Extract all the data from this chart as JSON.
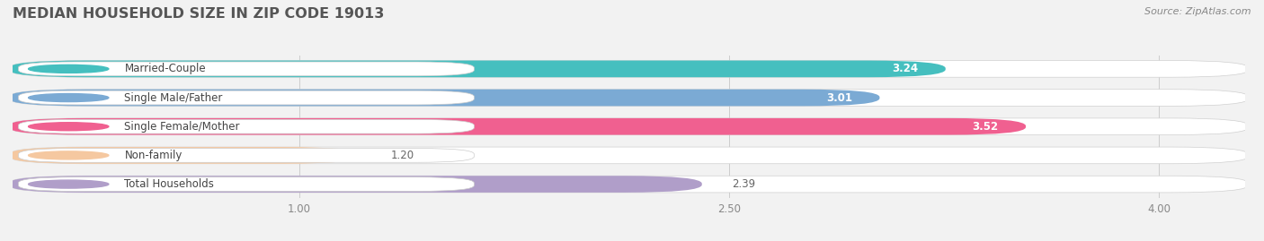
{
  "title": "MEDIAN HOUSEHOLD SIZE IN ZIP CODE 19013",
  "source": "Source: ZipAtlas.com",
  "categories": [
    "Married-Couple",
    "Single Male/Father",
    "Single Female/Mother",
    "Non-family",
    "Total Households"
  ],
  "values": [
    3.24,
    3.01,
    3.52,
    1.2,
    2.39
  ],
  "bar_colors": [
    "#45bfbf",
    "#7baad4",
    "#f06090",
    "#f5c8a0",
    "#b09ec9"
  ],
  "value_inside": [
    true,
    true,
    true,
    false,
    false
  ],
  "xmin": 0.0,
  "xmax": 4.3,
  "xlim_display": [
    1.0,
    2.5,
    4.0
  ],
  "bg_color": "#f2f2f2",
  "bar_bg_color": "#e8e8ea",
  "title_fontsize": 11.5,
  "label_fontsize": 8.5,
  "value_fontsize": 8.5,
  "source_fontsize": 8.0,
  "bar_height": 0.55,
  "bar_spacing": 1.0
}
